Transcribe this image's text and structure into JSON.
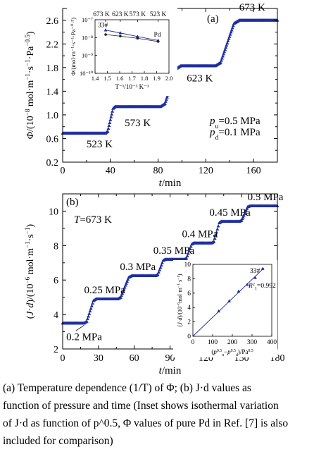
{
  "chart_data": [
    {
      "type": "scatter",
      "panel_label": "(a)",
      "ylabel": "Φ/(10⁻⁸ mol·m⁻¹·s⁻¹·Pa⁻⁰·⁵)",
      "xlabel": "t/min",
      "xlim": [
        0,
        180
      ],
      "ylim": [
        0.2,
        2.8
      ],
      "xticks": [
        "0",
        "40",
        "80",
        "120",
        "160"
      ],
      "yticks": [
        "0.2",
        "0.6",
        "1.0",
        "1.4",
        "1.8",
        "2.2",
        "2.6"
      ],
      "plateaus": [
        {
          "label": "523 K",
          "x_start": 0,
          "x_end": 36,
          "y": 0.69
        },
        {
          "label": "573 K",
          "x_start": 44,
          "x_end": 82,
          "y": 1.14
        },
        {
          "label": "623 K",
          "x_start": 99,
          "x_end": 128,
          "y": 1.83
        },
        {
          "label": "673 K",
          "x_start": 148,
          "x_end": 180,
          "y": 2.6
        }
      ],
      "conditions": [
        "p",
        "u",
        "=0.5 MPa",
        "p",
        "d",
        "=0.1 MPa"
      ],
      "inset": {
        "type": "line",
        "log_scale_y": true,
        "xlabel": "T⁻¹/10⁻³ K⁻¹",
        "ylabel": "Φ/(mol·m⁻¹·s⁻¹·Pa⁻⁰·⁵)",
        "xlim": [
          1.4,
          2.0
        ],
        "ylim_exponent": [
          -10,
          -7
        ],
        "xticks": [
          "1.4",
          "1.5",
          "1.6",
          "1.7",
          "1.8",
          "1.9",
          "2.0"
        ],
        "yticks": [
          "10⁻⁷",
          "10⁻⁸",
          "10⁻⁹",
          "10⁻¹⁰"
        ],
        "top_labels": [
          "673 K",
          "623 K",
          "573 K",
          "523 K"
        ],
        "series": [
          {
            "name": "33#",
            "x": [
              1.486,
              1.605,
              1.745,
              1.912
            ],
            "y_exponent": [
              -7.58,
              -7.74,
              -7.94,
              -8.16
            ]
          },
          {
            "name": "Pd",
            "x": [
              1.486,
              1.605,
              1.745,
              1.912
            ],
            "y_exponent": [
              -7.83,
              -7.92,
              -8.04,
              -8.22
            ]
          }
        ]
      }
    },
    {
      "type": "scatter",
      "panel_label": "(b)",
      "ylabel": "(J·d)/(10⁻⁶ mol·m⁻¹·s⁻¹)",
      "xlabel": "t/min",
      "xlim": [
        0,
        180
      ],
      "ylim": [
        2,
        11
      ],
      "xticks": [
        "0",
        "30",
        "60",
        "90",
        "120",
        "150",
        "180"
      ],
      "yticks": [
        "2",
        "4",
        "6",
        "8",
        "10"
      ],
      "temperature_label": "T=673 K",
      "plateaus": [
        {
          "label": "0.2 MPa",
          "x_start": 0,
          "x_end": 18,
          "y": 3.5
        },
        {
          "label": "0.25 MPa",
          "x_start": 28,
          "x_end": 46,
          "y": 4.9
        },
        {
          "label": "0.3 MPa",
          "x_start": 58,
          "x_end": 78,
          "y": 6.25
        },
        {
          "label": "0.35 MPa",
          "x_start": 86,
          "x_end": 102,
          "y": 7.2
        },
        {
          "label": "0.4 MPa",
          "x_start": 110,
          "x_end": 125,
          "y": 8.15
        },
        {
          "label": "0.45 MPa",
          "x_start": 133,
          "x_end": 148,
          "y": 9.4
        },
        {
          "label": "0.5 MPa",
          "x_start": 157,
          "x_end": 180,
          "y": 10.3
        }
      ],
      "inset": {
        "type": "scatter",
        "xlabel": "(p_u^0.5−p_d^0.5)/Pa^0.5",
        "ylabel": "(J·d)/(10⁻⁶ mol·m⁻¹·s⁻¹)",
        "xlim": [
          0,
          400
        ],
        "ylim": [
          0,
          10
        ],
        "xticks": [
          "0",
          "100",
          "200",
          "300",
          "400"
        ],
        "yticks": [
          "0",
          "2",
          "4",
          "6",
          "8",
          "10"
        ],
        "series_label": "33#",
        "r2_label": [
          "R",
          "2",
          "1",
          "=0.992"
        ],
        "x": [
          131,
          184,
          232,
          276,
          316,
          354
        ],
        "y": [
          3.5,
          4.9,
          6.25,
          7.2,
          8.15,
          9.4
        ]
      }
    }
  ],
  "caption": {
    "line1": "(a) Temperature dependence (1/T) of Φ; (b) J·d values as",
    "line2": "function of pressure and time (Inset shows isothermal variation",
    "line3": "of J·d as function of p^0.5, Φ values of pure Pd in Ref. [7] is also",
    "line4": "included for comparison)"
  }
}
